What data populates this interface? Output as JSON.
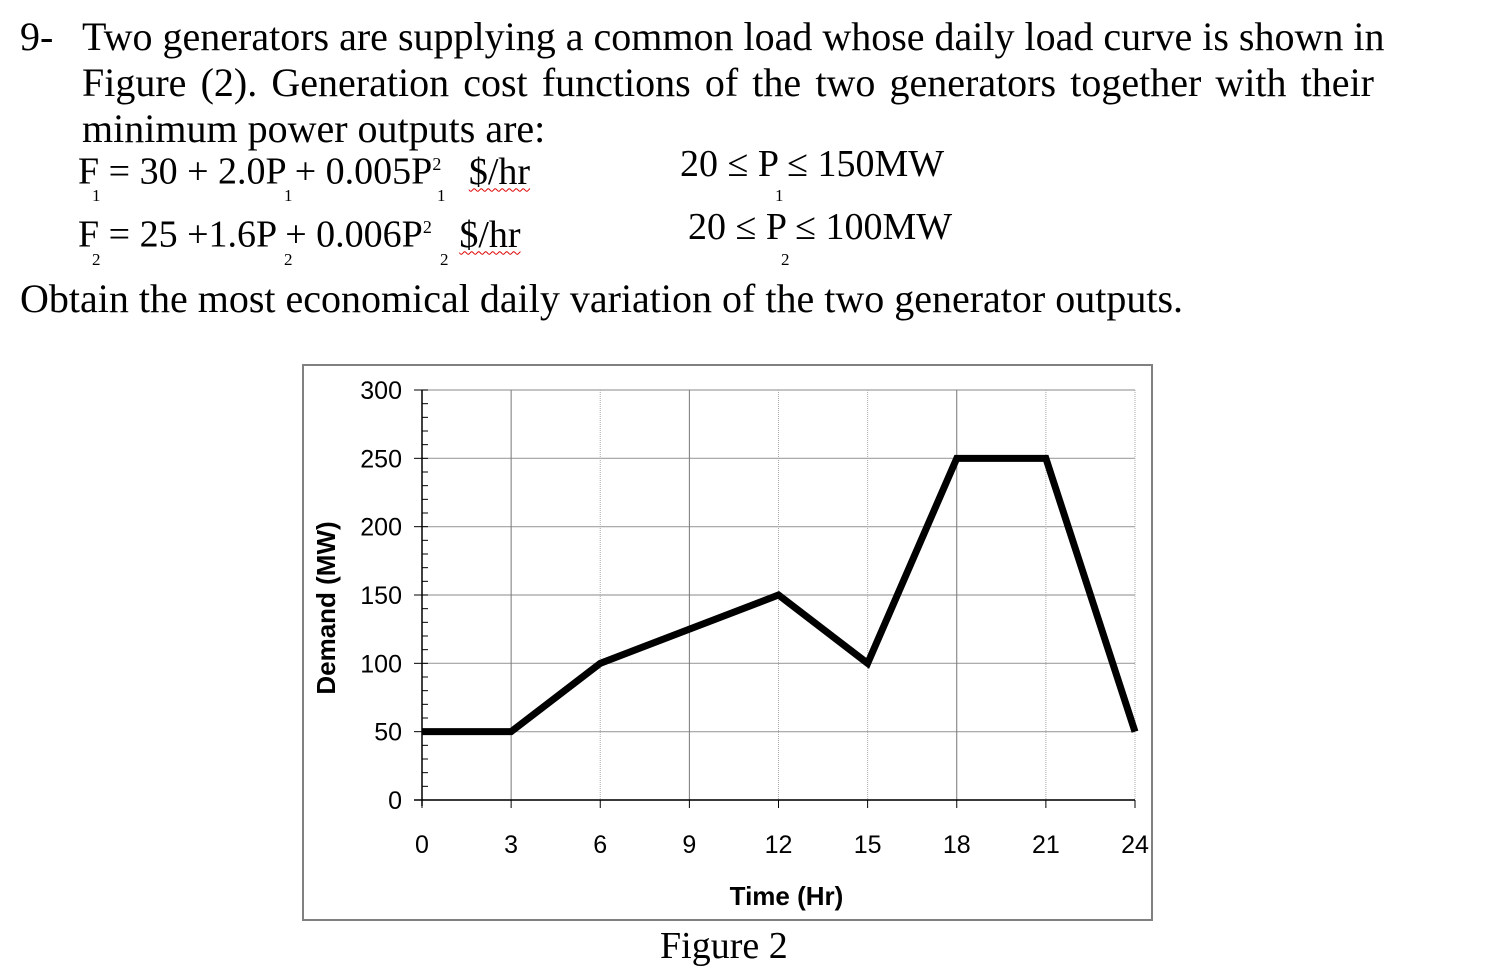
{
  "question": {
    "number": "9-",
    "line1": "Two generators are supplying a common load whose daily load curve is shown in",
    "line2": "Figure (2). Generation cost functions of the two generators together with their",
    "line3": "minimum power outputs are:",
    "eq1": {
      "lhs": "F",
      "lhs_sub": "1",
      "rhs": "= 30 + 2.0P",
      "p_sub": "1",
      "rhs2": "+ 0.005P",
      "p2_sub": "1",
      "exp": "2",
      "unit": "$/hr",
      "constraint_left": "20 ≤ P",
      "constraint_sub": "1",
      "constraint_right": "≤ 150MW"
    },
    "eq2": {
      "lhs": "F",
      "lhs_sub": "2",
      "rhs": "= 25 +1.6P",
      "p_sub": "2",
      "rhs2": "+ 0.006P",
      "p2_sub": "2",
      "exp": "2",
      "unit": "$/hr",
      "constraint_left": "20 ≤ P",
      "constraint_sub": "2",
      "constraint_right": "≤ 100MW"
    },
    "task": "Obtain the most economical daily variation of the two generator outputs."
  },
  "figure_caption": "Figure 2",
  "chart_data": {
    "type": "line",
    "title": "",
    "xlabel": "Time (Hr)",
    "ylabel": "Demand (MW)",
    "x": [
      0,
      3,
      6,
      12,
      15,
      18,
      21,
      24
    ],
    "series": [
      {
        "name": "Demand",
        "values": [
          50,
          50,
          100,
          150,
          100,
          250,
          250,
          50
        ]
      }
    ],
    "xticks": [
      "0",
      "3",
      "6",
      "9",
      "12",
      "15",
      "18",
      "21",
      "24"
    ],
    "yticks": [
      "0",
      "50",
      "100",
      "150",
      "200",
      "250",
      "300"
    ],
    "xlim": [
      0,
      24
    ],
    "ylim": [
      0,
      300
    ],
    "grid": true,
    "legend": "none",
    "line_color": "#000000"
  }
}
